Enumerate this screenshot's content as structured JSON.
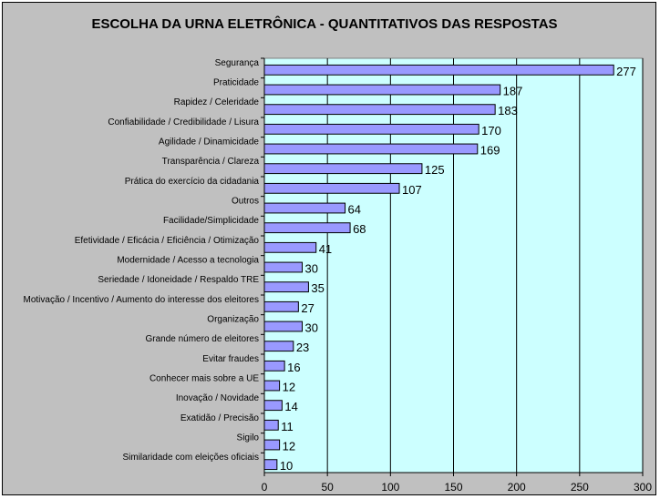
{
  "chart_data": {
    "type": "bar",
    "orientation": "horizontal",
    "title": "ESCOLHA DA URNA ELETRÔNICA - QUANTITATIVOS DAS RESPOSTAS",
    "xlabel": "",
    "ylabel": "",
    "categories": [
      "Segurança",
      "Praticidade",
      "Rapidez / Celeridade",
      "Confiabilidade / Credibilidade / Lisura",
      "Agilidade / Dinamicidade",
      "Transparência / Clareza",
      "Prática do exercício da cidadania",
      "Outros",
      "Facilidade/Simplicidade",
      "Efetividade / Eficácia / Eficiência / Otimização",
      "Modernidade / Acesso a tecnologia",
      "Seriedade / Idoneidade / Respaldo TRE",
      "Motivação / Incentivo / Aumento do interesse dos eleitores",
      "Organização",
      "Grande número de eleitores",
      "Evitar fraudes",
      "Conhecer mais sobre a UE",
      "Inovação / Novidade",
      "Exatidão / Precisão",
      "Sigilo",
      "Similaridade com eleições oficiais"
    ],
    "values": [
      277,
      187,
      183,
      170,
      169,
      125,
      107,
      64,
      68,
      41,
      30,
      35,
      27,
      30,
      23,
      16,
      12,
      14,
      11,
      12,
      10
    ],
    "xlim": [
      0,
      300
    ],
    "xticks": [
      "0",
      "50",
      "100",
      "150",
      "200",
      "250",
      "300"
    ],
    "grid": true,
    "legend": "none",
    "colors": {
      "bar_fill": "#9999ff",
      "bar_stroke": "#000000",
      "plot_background": "#ccffff",
      "chart_background": "#c0c0c0"
    }
  }
}
